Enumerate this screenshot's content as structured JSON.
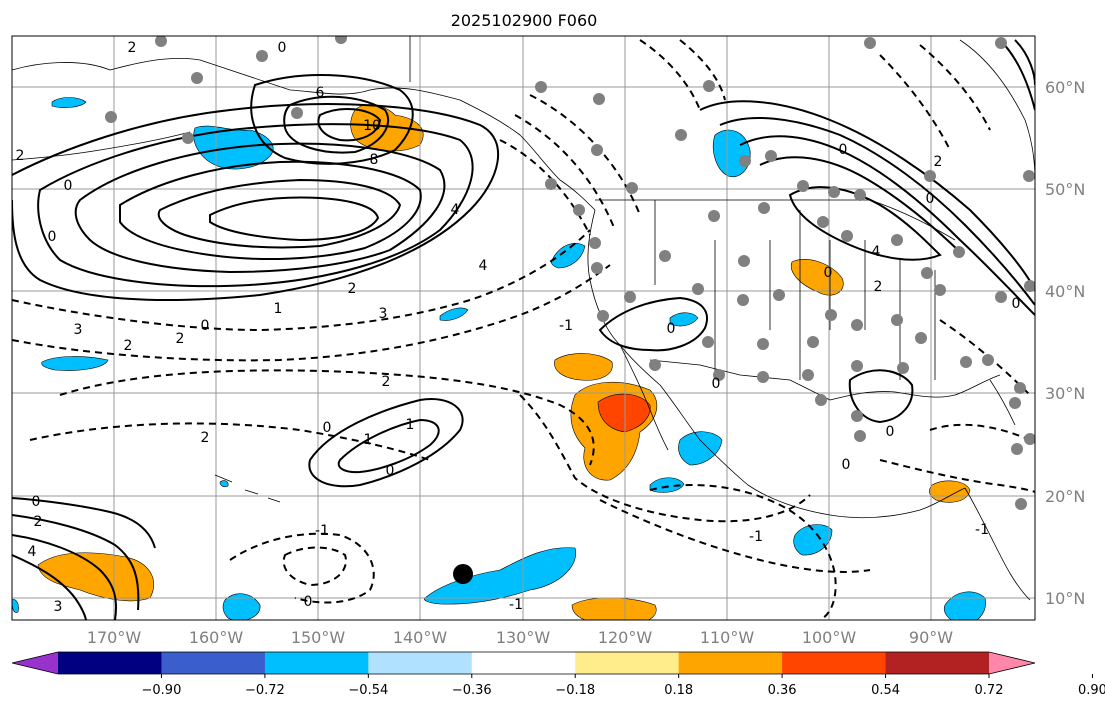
{
  "title": "2025102900 F060",
  "lon_labels": [
    "170°W",
    "160°W",
    "150°W",
    "140°W",
    "130°W",
    "120°W",
    "110°W",
    "100°W",
    "90°W"
  ],
  "lat_labels": [
    "60°N",
    "50°N",
    "40°N",
    "30°N",
    "20°N",
    "10°N"
  ],
  "colorbar": {
    "colors": [
      "#9932cc",
      "#000080",
      "#3a5fcd",
      "#00bfff",
      "#b0e2ff",
      "#ffffff",
      "#ffec8b",
      "#ffa500",
      "#ff4500",
      "#b22222",
      "#ff88aa"
    ],
    "tick_labels": [
      "−0.90",
      "−0.72",
      "−0.54",
      "−0.36",
      "−0.18",
      "0.18",
      "0.36",
      "0.54",
      "0.72",
      "0.90"
    ]
  },
  "contour_labels": [
    "0",
    "2",
    "6",
    "10",
    "8",
    "0",
    "0",
    "4",
    "2",
    "3",
    "2",
    "0",
    "1",
    "2",
    "2",
    "4",
    "3",
    "2",
    "2",
    "0",
    "1",
    "1",
    "0",
    "2",
    "-1",
    "0",
    "-1",
    "0",
    "-1",
    "0",
    "0",
    "4",
    "2",
    "0",
    "3",
    "-1",
    "0",
    "0",
    "2",
    "0",
    "4",
    "0",
    "-1",
    "0"
  ],
  "marker": "black-dot"
}
